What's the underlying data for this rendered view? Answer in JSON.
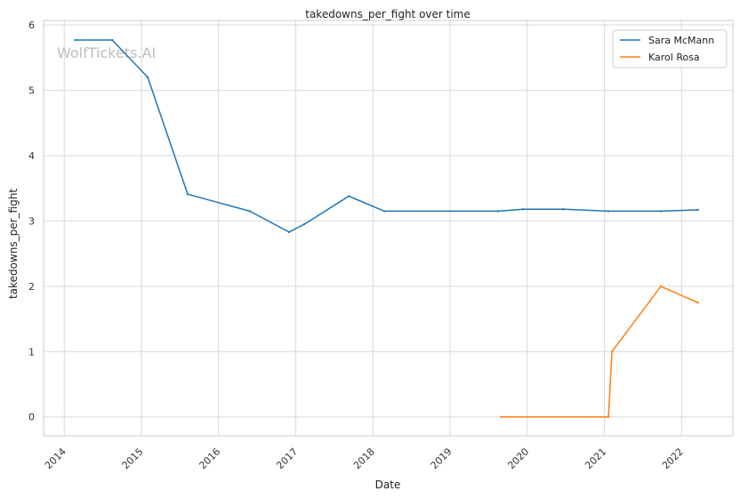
{
  "watermark": "WolfTickets.AI",
  "chart_data": {
    "type": "line",
    "title": "takedowns_per_fight over time",
    "xlabel": "Date",
    "ylabel": "takedowns_per_fight",
    "x_ticks": [
      "2014",
      "2015",
      "2016",
      "2017",
      "2018",
      "2019",
      "2020",
      "2021",
      "2022"
    ],
    "y_ticks": [
      "0",
      "1",
      "2",
      "3",
      "4",
      "5",
      "6"
    ],
    "xlim": [
      "2013-09-25",
      "2022-09-01"
    ],
    "ylim": [
      -0.29,
      6.07
    ],
    "grid": true,
    "legend_position": "top-right",
    "series": [
      {
        "name": "Sara McMann",
        "color": "#1f77b4",
        "points": [
          [
            "2014-02-22",
            5.77
          ],
          [
            "2014-08-16",
            5.77
          ],
          [
            "2015-01-31",
            5.2
          ],
          [
            "2015-08-08",
            3.41
          ],
          [
            "2016-05-28",
            3.15
          ],
          [
            "2016-11-30",
            2.83
          ],
          [
            "2017-02-10",
            2.95
          ],
          [
            "2017-09-09",
            3.38
          ],
          [
            "2018-02-24",
            3.15
          ],
          [
            "2019-08-17",
            3.15
          ],
          [
            "2019-12-14",
            3.18
          ],
          [
            "2020-06-20",
            3.18
          ],
          [
            "2021-01-20",
            3.15
          ],
          [
            "2021-09-25",
            3.15
          ],
          [
            "2022-03-19",
            3.17
          ]
        ]
      },
      {
        "name": "Karol Rosa",
        "color": "#ff7f0e",
        "points": [
          [
            "2019-08-31",
            0.0
          ],
          [
            "2021-01-20",
            0.0
          ],
          [
            "2021-02-06",
            1.0
          ],
          [
            "2021-09-25",
            2.0
          ],
          [
            "2022-03-19",
            1.75
          ]
        ]
      }
    ]
  }
}
